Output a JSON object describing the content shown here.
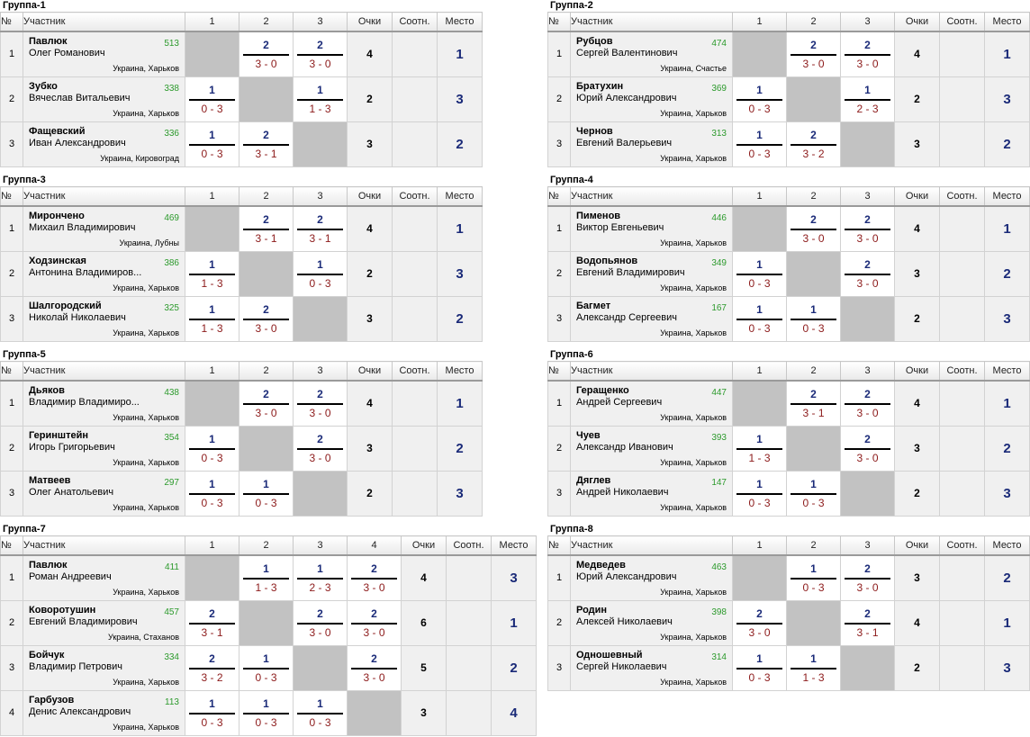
{
  "header": {
    "num": "№",
    "participant": "Участник",
    "points": "Очки",
    "ratio": "Соотн.",
    "place": "Место"
  },
  "groups": [
    {
      "title": "Группа-1",
      "cols": [
        "1",
        "2",
        "3"
      ],
      "rows": [
        {
          "n": "1",
          "name": "Павлюк",
          "full": "Олег Романович",
          "rating": "513",
          "loc": "Украина, Харьков",
          "results": [
            null,
            {
              "p": "2",
              "s": "3 - 0"
            },
            {
              "p": "2",
              "s": "3 - 0"
            }
          ],
          "points": "4",
          "place": "1"
        },
        {
          "n": "2",
          "name": "Зубко",
          "full": "Вячеслав Витальевич",
          "rating": "338",
          "loc": "Украина, Харьков",
          "results": [
            {
              "p": "1",
              "s": "0 - 3"
            },
            null,
            {
              "p": "1",
              "s": "1 - 3"
            }
          ],
          "points": "2",
          "place": "3"
        },
        {
          "n": "3",
          "name": "Фащевский",
          "full": "Иван Александрович",
          "rating": "336",
          "loc": "Украина, Кировоград",
          "results": [
            {
              "p": "1",
              "s": "0 - 3"
            },
            {
              "p": "2",
              "s": "3 - 1"
            },
            null
          ],
          "points": "3",
          "place": "2"
        }
      ]
    },
    {
      "title": "Группа-2",
      "cols": [
        "1",
        "2",
        "3"
      ],
      "rows": [
        {
          "n": "1",
          "name": "Рубцов",
          "full": "Сергей Валентинович",
          "rating": "474",
          "loc": "Украина, Счастье",
          "results": [
            null,
            {
              "p": "2",
              "s": "3 - 0"
            },
            {
              "p": "2",
              "s": "3 - 0"
            }
          ],
          "points": "4",
          "place": "1"
        },
        {
          "n": "2",
          "name": "Братухин",
          "full": "Юрий Александрович",
          "rating": "369",
          "loc": "Украина, Харьков",
          "results": [
            {
              "p": "1",
              "s": "0 - 3"
            },
            null,
            {
              "p": "1",
              "s": "2 - 3"
            }
          ],
          "points": "2",
          "place": "3"
        },
        {
          "n": "3",
          "name": "Чернов",
          "full": "Евгений Валерьевич",
          "rating": "313",
          "loc": "Украина, Харьков",
          "results": [
            {
              "p": "1",
              "s": "0 - 3"
            },
            {
              "p": "2",
              "s": "3 - 2"
            },
            null
          ],
          "points": "3",
          "place": "2"
        }
      ]
    },
    {
      "title": "Группа-3",
      "cols": [
        "1",
        "2",
        "3"
      ],
      "rows": [
        {
          "n": "1",
          "name": "Мирончено",
          "full": "Михаил Владимирович",
          "rating": "469",
          "loc": "Украина, Лубны",
          "results": [
            null,
            {
              "p": "2",
              "s": "3 - 1"
            },
            {
              "p": "2",
              "s": "3 - 1"
            }
          ],
          "points": "4",
          "place": "1"
        },
        {
          "n": "2",
          "name": "Ходзинская",
          "full": "Антонина Владимиров...",
          "rating": "386",
          "loc": "Украина, Харьков",
          "results": [
            {
              "p": "1",
              "s": "1 - 3"
            },
            null,
            {
              "p": "1",
              "s": "0 - 3"
            }
          ],
          "points": "2",
          "place": "3"
        },
        {
          "n": "3",
          "name": "Шалгородский",
          "full": "Николай Николаевич",
          "rating": "325",
          "loc": "Украина, Харьков",
          "results": [
            {
              "p": "1",
              "s": "1 - 3"
            },
            {
              "p": "2",
              "s": "3 - 0"
            },
            null
          ],
          "points": "3",
          "place": "2"
        }
      ]
    },
    {
      "title": "Группа-4",
      "cols": [
        "1",
        "2",
        "3"
      ],
      "rows": [
        {
          "n": "1",
          "name": "Пименов",
          "full": "Виктор Евгеньевич",
          "rating": "446",
          "loc": "Украина, Харьков",
          "results": [
            null,
            {
              "p": "2",
              "s": "3 - 0"
            },
            {
              "p": "2",
              "s": "3 - 0"
            }
          ],
          "points": "4",
          "place": "1"
        },
        {
          "n": "2",
          "name": "Водопьянов",
          "full": "Евгений Владимирович",
          "rating": "349",
          "loc": "Украина, Харьков",
          "results": [
            {
              "p": "1",
              "s": "0 - 3"
            },
            null,
            {
              "p": "2",
              "s": "3 - 0"
            }
          ],
          "points": "3",
          "place": "2"
        },
        {
          "n": "3",
          "name": "Багмет",
          "full": "Александр Сергеевич",
          "rating": "167",
          "loc": "Украина, Харьков",
          "results": [
            {
              "p": "1",
              "s": "0 - 3"
            },
            {
              "p": "1",
              "s": "0 - 3"
            },
            null
          ],
          "points": "2",
          "place": "3"
        }
      ]
    },
    {
      "title": "Группа-5",
      "cols": [
        "1",
        "2",
        "3"
      ],
      "rows": [
        {
          "n": "1",
          "name": "Дьяков",
          "full": "Владимир Владимиро...",
          "rating": "438",
          "loc": "Украина, Харьков",
          "results": [
            null,
            {
              "p": "2",
              "s": "3 - 0"
            },
            {
              "p": "2",
              "s": "3 - 0"
            }
          ],
          "points": "4",
          "place": "1"
        },
        {
          "n": "2",
          "name": "Геринштейн",
          "full": "Игорь Григорьевич",
          "rating": "354",
          "loc": "Украина, Харьков",
          "results": [
            {
              "p": "1",
              "s": "0 - 3"
            },
            null,
            {
              "p": "2",
              "s": "3 - 0"
            }
          ],
          "points": "3",
          "place": "2"
        },
        {
          "n": "3",
          "name": "Матвеев",
          "full": "Олег Анатольевич",
          "rating": "297",
          "loc": "Украина, Харьков",
          "results": [
            {
              "p": "1",
              "s": "0 - 3"
            },
            {
              "p": "1",
              "s": "0 - 3"
            },
            null
          ],
          "points": "2",
          "place": "3"
        }
      ]
    },
    {
      "title": "Группа-6",
      "cols": [
        "1",
        "2",
        "3"
      ],
      "rows": [
        {
          "n": "1",
          "name": "Геращенко",
          "full": "Андрей Сергеевич",
          "rating": "447",
          "loc": "Украина, Харьков",
          "results": [
            null,
            {
              "p": "2",
              "s": "3 - 1"
            },
            {
              "p": "2",
              "s": "3 - 0"
            }
          ],
          "points": "4",
          "place": "1"
        },
        {
          "n": "2",
          "name": "Чуев",
          "full": "Александр Иванович",
          "rating": "393",
          "loc": "Украина, Харьков",
          "results": [
            {
              "p": "1",
              "s": "1 - 3"
            },
            null,
            {
              "p": "2",
              "s": "3 - 0"
            }
          ],
          "points": "3",
          "place": "2"
        },
        {
          "n": "3",
          "name": "Дяглев",
          "full": "Андрей Николаевич",
          "rating": "147",
          "loc": "Украина, Харьков",
          "results": [
            {
              "p": "1",
              "s": "0 - 3"
            },
            {
              "p": "1",
              "s": "0 - 3"
            },
            null
          ],
          "points": "2",
          "place": "3"
        }
      ]
    },
    {
      "title": "Группа-7",
      "cols": [
        "1",
        "2",
        "3",
        "4"
      ],
      "rows": [
        {
          "n": "1",
          "name": "Павлюк",
          "full": "Роман Андреевич",
          "rating": "411",
          "loc": "Украина, Харьков",
          "results": [
            null,
            {
              "p": "1",
              "s": "1 - 3"
            },
            {
              "p": "1",
              "s": "2 - 3"
            },
            {
              "p": "2",
              "s": "3 - 0"
            }
          ],
          "points": "4",
          "place": "3"
        },
        {
          "n": "2",
          "name": "Коворотушин",
          "full": "Евгений Владимирович",
          "rating": "457",
          "loc": "Украина, Стаханов",
          "results": [
            {
              "p": "2",
              "s": "3 - 1"
            },
            null,
            {
              "p": "2",
              "s": "3 - 0"
            },
            {
              "p": "2",
              "s": "3 - 0"
            }
          ],
          "points": "6",
          "place": "1"
        },
        {
          "n": "3",
          "name": "Бойчук",
          "full": "Владимир Петрович",
          "rating": "334",
          "loc": "Украина, Харьков",
          "results": [
            {
              "p": "2",
              "s": "3 - 2"
            },
            {
              "p": "1",
              "s": "0 - 3"
            },
            null,
            {
              "p": "2",
              "s": "3 - 0"
            }
          ],
          "points": "5",
          "place": "2"
        },
        {
          "n": "4",
          "name": "Гарбузов",
          "full": "Денис Александрович",
          "rating": "113",
          "loc": "Украина, Харьков",
          "results": [
            {
              "p": "1",
              "s": "0 - 3"
            },
            {
              "p": "1",
              "s": "0 - 3"
            },
            {
              "p": "1",
              "s": "0 - 3"
            },
            null
          ],
          "points": "3",
          "place": "4"
        }
      ]
    },
    {
      "title": "Группа-8",
      "cols": [
        "1",
        "2",
        "3"
      ],
      "rows": [
        {
          "n": "1",
          "name": "Медведев",
          "full": "Юрий Александрович",
          "rating": "463",
          "loc": "Украина, Харьков",
          "results": [
            null,
            {
              "p": "1",
              "s": "0 - 3"
            },
            {
              "p": "2",
              "s": "3 - 0"
            }
          ],
          "points": "3",
          "place": "2"
        },
        {
          "n": "2",
          "name": "Родин",
          "full": "Алексей Николаевич",
          "rating": "398",
          "loc": "Украина, Харьков",
          "results": [
            {
              "p": "2",
              "s": "3 - 0"
            },
            null,
            {
              "p": "2",
              "s": "3 - 1"
            }
          ],
          "points": "4",
          "place": "1"
        },
        {
          "n": "3",
          "name": "Одношевный",
          "full": "Сергей Николаевич",
          "rating": "314",
          "loc": "Украина, Харьков",
          "results": [
            {
              "p": "1",
              "s": "0 - 3"
            },
            {
              "p": "1",
              "s": "1 - 3"
            },
            null
          ],
          "points": "2",
          "place": "3"
        }
      ]
    }
  ]
}
